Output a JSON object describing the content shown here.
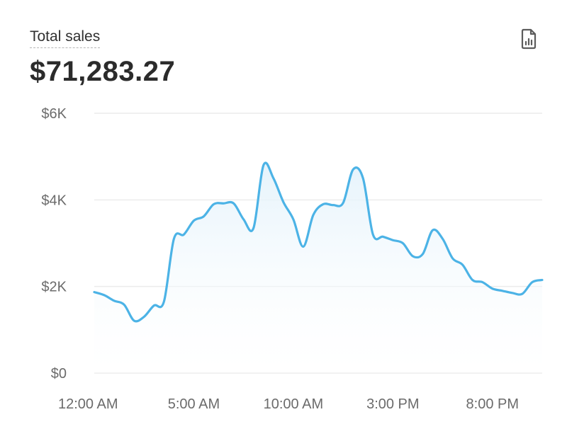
{
  "header": {
    "title": "Total sales",
    "total": "$71,283.27",
    "report_icon": "report-chart-icon"
  },
  "colors": {
    "line": "#4cb3e6",
    "area_top": "#e3f2fb",
    "grid": "#ebebeb",
    "axis_text": "#6b6b6b"
  },
  "chart_data": {
    "type": "area",
    "ylim": [
      0,
      6000
    ],
    "yticks": [
      0,
      2000,
      4000,
      6000
    ],
    "ytick_labels": [
      "$0",
      "$2K",
      "$4K",
      "$6K"
    ],
    "xtick_labels": [
      "12:00 AM",
      "5:00 AM",
      "10:00 AM",
      "3:00 PM",
      "8:00 PM"
    ],
    "xticks_at_hour": [
      0,
      5,
      10,
      15,
      20
    ],
    "xlim": [
      0,
      22.5
    ],
    "grid": true,
    "x": [
      0,
      0.5,
      1,
      1.5,
      2,
      2.5,
      3,
      3.5,
      4,
      4.5,
      5,
      5.5,
      6,
      6.5,
      7,
      7.5,
      8,
      8.5,
      9,
      9.5,
      10,
      10.5,
      11,
      11.5,
      12,
      12.5,
      13,
      13.5,
      14,
      14.5,
      15,
      15.5,
      16,
      16.5,
      17,
      17.5,
      18,
      18.5,
      19,
      19.5,
      20,
      20.5,
      21,
      21.5,
      22,
      22.5
    ],
    "values": [
      1870,
      1800,
      1670,
      1580,
      1210,
      1300,
      1560,
      1650,
      3100,
      3200,
      3520,
      3620,
      3900,
      3920,
      3920,
      3550,
      3350,
      4800,
      4500,
      3950,
      3550,
      2920,
      3650,
      3900,
      3880,
      3930,
      4700,
      4500,
      3200,
      3150,
      3070,
      3000,
      2700,
      2750,
      3300,
      3100,
      2650,
      2500,
      2150,
      2100,
      1950,
      1900,
      1850,
      1830,
      2100,
      2150
    ]
  }
}
